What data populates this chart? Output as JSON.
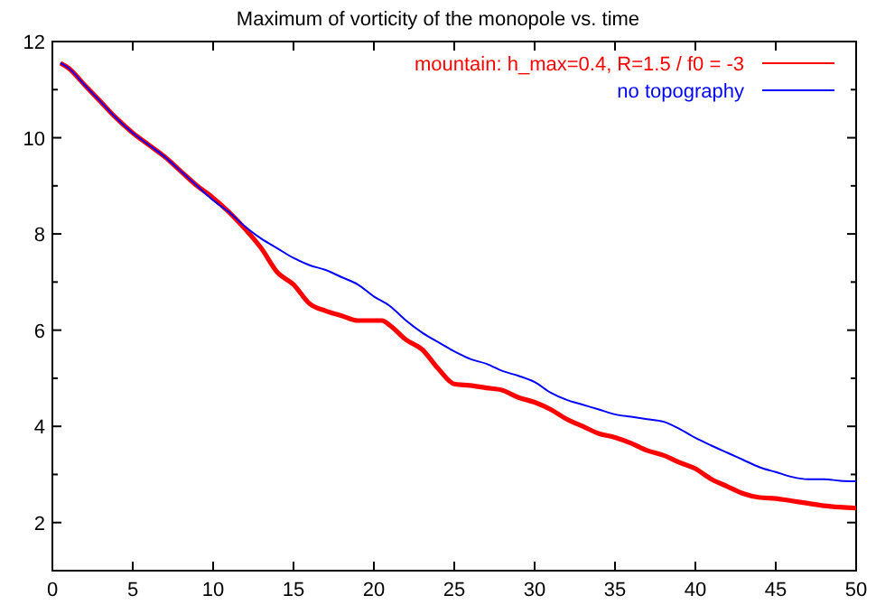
{
  "chart_data": {
    "type": "line",
    "title": "Maximum of vorticity of the monopole vs. time",
    "xlim": [
      0,
      50
    ],
    "xticks": [
      0,
      5,
      10,
      15,
      20,
      25,
      30,
      35,
      40,
      45,
      50
    ],
    "ylim": [
      1,
      12
    ],
    "yticks": [
      {
        "value": 1,
        "label": null
      },
      2,
      {
        "value": 3,
        "label": null
      },
      4,
      {
        "value": 5,
        "label": null
      },
      6,
      {
        "value": 7,
        "label": null
      },
      8,
      {
        "value": 9,
        "label": null
      },
      10,
      {
        "value": 11,
        "label": null
      },
      12
    ],
    "grid": false,
    "legend": "top right",
    "marker": "none",
    "line_style": "solid",
    "series": [
      {
        "name": "mountain: h_max=0.4, R=1.5 / f0 = -3",
        "color": "#ff0000",
        "x": [
          0.5,
          1,
          2,
          3,
          4,
          5,
          6,
          7,
          8,
          9,
          10,
          11,
          12,
          13,
          14,
          15,
          16,
          17,
          18,
          19,
          20,
          20.5,
          21,
          22,
          23,
          24,
          25,
          26,
          27,
          28,
          29,
          30,
          31,
          32,
          33,
          34,
          35,
          36,
          37,
          38,
          39,
          40,
          41,
          42,
          43,
          44,
          45,
          46,
          47,
          48,
          49,
          50
        ],
        "values": [
          11.55,
          11.45,
          11.1,
          10.75,
          10.4,
          10.1,
          9.85,
          9.6,
          9.3,
          9.0,
          8.75,
          8.45,
          8.1,
          7.7,
          7.2,
          6.95,
          6.55,
          6.4,
          6.3,
          6.2,
          6.2,
          6.2,
          6.1,
          5.8,
          5.6,
          5.2,
          4.88,
          4.85,
          4.8,
          4.75,
          4.6,
          4.5,
          4.35,
          4.15,
          4.0,
          3.85,
          3.77,
          3.65,
          3.5,
          3.4,
          3.25,
          3.12,
          2.9,
          2.75,
          2.6,
          2.52,
          2.5,
          2.45,
          2.4,
          2.35,
          2.32,
          2.3
        ]
      },
      {
        "name": "no topography",
        "color": "#0000ff",
        "x": [
          0.5,
          1,
          2,
          3,
          4,
          5,
          6,
          7,
          8,
          9,
          10,
          11,
          12,
          13,
          14,
          15,
          16,
          17,
          18,
          19,
          20,
          21,
          22,
          23,
          24,
          25,
          26,
          27,
          28,
          29,
          30,
          31,
          32,
          33,
          34,
          35,
          36,
          37,
          38,
          39,
          40,
          41,
          42,
          43,
          44,
          45,
          46,
          47,
          48,
          49,
          50
        ],
        "values": [
          11.55,
          11.45,
          11.1,
          10.75,
          10.4,
          10.1,
          9.85,
          9.6,
          9.3,
          9.0,
          8.7,
          8.45,
          8.15,
          7.9,
          7.7,
          7.5,
          7.35,
          7.25,
          7.1,
          6.95,
          6.7,
          6.5,
          6.2,
          5.95,
          5.75,
          5.56,
          5.4,
          5.3,
          5.15,
          5.05,
          4.92,
          4.7,
          4.55,
          4.45,
          4.35,
          4.25,
          4.2,
          4.15,
          4.1,
          3.95,
          3.76,
          3.6,
          3.45,
          3.3,
          3.15,
          3.05,
          2.95,
          2.9,
          2.9,
          2.87,
          2.86
        ]
      }
    ]
  }
}
